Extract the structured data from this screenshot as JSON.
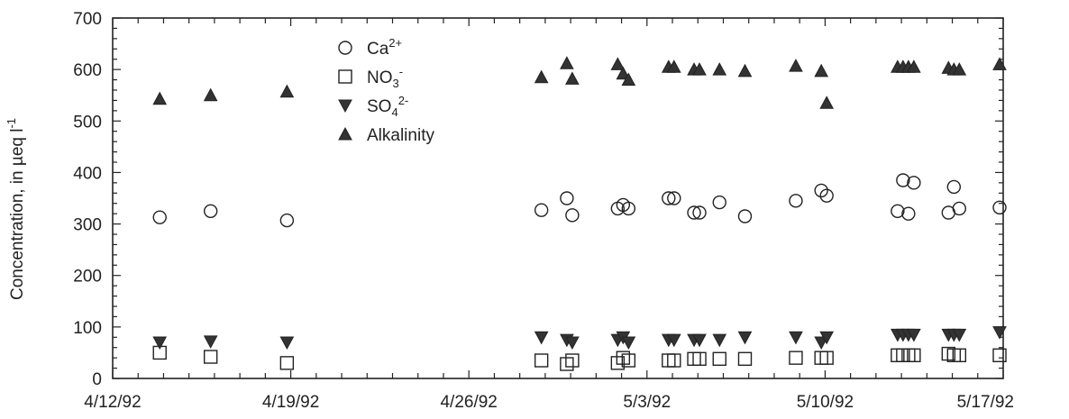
{
  "chart_data": {
    "type": "scatter",
    "title": "",
    "xlabel": "",
    "ylabel": "Concentration, in µeq l",
    "ylabel_superscript": "-1",
    "xlim": [
      "1992-04-12",
      "1992-05-17"
    ],
    "ylim": [
      0,
      700
    ],
    "yticks": [
      0,
      100,
      200,
      300,
      400,
      500,
      600,
      700
    ],
    "xticks": [
      {
        "date": "1992-04-12",
        "label": "4/12/92"
      },
      {
        "date": "1992-04-19",
        "label": "4/19/92"
      },
      {
        "date": "1992-04-26",
        "label": "4/26/92"
      },
      {
        "date": "1992-05-03",
        "label": "5/3/92"
      },
      {
        "date": "1992-05-10",
        "label": "5/10/92"
      },
      {
        "date": "1992-05-17",
        "label": "5/17/92"
      }
    ],
    "grid": false,
    "legend_position": "top-left",
    "series": [
      {
        "name": "Ca",
        "name_sup": "2+",
        "name_sub": "",
        "marker": "circle-open",
        "points": [
          [
            "1992-04-13",
            313
          ],
          [
            "1992-04-15",
            325
          ],
          [
            "1992-04-18",
            307
          ],
          [
            "1992-04-28",
            327
          ],
          [
            "1992-04-29",
            350
          ],
          [
            "1992-04-29",
            317
          ],
          [
            "1992-05-01",
            330
          ],
          [
            "1992-05-01",
            337
          ],
          [
            "1992-05-01",
            330
          ],
          [
            "1992-05-03",
            350
          ],
          [
            "1992-05-03",
            350
          ],
          [
            "1992-05-04",
            322
          ],
          [
            "1992-05-04",
            322
          ],
          [
            "1992-05-05",
            342
          ],
          [
            "1992-05-06",
            315
          ],
          [
            "1992-05-08",
            345
          ],
          [
            "1992-05-09",
            365
          ],
          [
            "1992-05-09",
            355
          ],
          [
            "1992-05-12",
            325
          ],
          [
            "1992-05-12",
            385
          ],
          [
            "1992-05-12",
            320
          ],
          [
            "1992-05-12",
            380
          ],
          [
            "1992-05-14",
            322
          ],
          [
            "1992-05-14",
            372
          ],
          [
            "1992-05-14",
            330
          ],
          [
            "1992-05-17",
            332
          ]
        ]
      },
      {
        "name": "NO",
        "name_sup": "-",
        "name_sub": "3",
        "marker": "square-open",
        "points": [
          [
            "1992-04-13",
            50
          ],
          [
            "1992-04-15",
            42
          ],
          [
            "1992-04-18",
            30
          ],
          [
            "1992-04-28",
            35
          ],
          [
            "1992-04-29",
            28
          ],
          [
            "1992-04-29",
            35
          ],
          [
            "1992-05-01",
            30
          ],
          [
            "1992-05-01",
            40
          ],
          [
            "1992-05-01",
            35
          ],
          [
            "1992-05-03",
            35
          ],
          [
            "1992-05-03",
            35
          ],
          [
            "1992-05-04",
            38
          ],
          [
            "1992-05-04",
            38
          ],
          [
            "1992-05-05",
            38
          ],
          [
            "1992-05-06",
            38
          ],
          [
            "1992-05-08",
            40
          ],
          [
            "1992-05-09",
            40
          ],
          [
            "1992-05-09",
            40
          ],
          [
            "1992-05-12",
            45
          ],
          [
            "1992-05-12",
            45
          ],
          [
            "1992-05-12",
            45
          ],
          [
            "1992-05-12",
            45
          ],
          [
            "1992-05-14",
            48
          ],
          [
            "1992-05-14",
            45
          ],
          [
            "1992-05-14",
            45
          ],
          [
            "1992-05-17",
            45
          ]
        ]
      },
      {
        "name": "SO",
        "name_sup": "2-",
        "name_sub": "4",
        "marker": "triangle-down-filled",
        "points": [
          [
            "1992-04-13",
            70
          ],
          [
            "1992-04-15",
            72
          ],
          [
            "1992-04-18",
            70
          ],
          [
            "1992-04-28",
            80
          ],
          [
            "1992-04-29",
            75
          ],
          [
            "1992-04-29",
            70
          ],
          [
            "1992-05-01",
            75
          ],
          [
            "1992-05-01",
            80
          ],
          [
            "1992-05-01",
            70
          ],
          [
            "1992-05-03",
            75
          ],
          [
            "1992-05-03",
            75
          ],
          [
            "1992-05-04",
            75
          ],
          [
            "1992-05-04",
            75
          ],
          [
            "1992-05-05",
            75
          ],
          [
            "1992-05-06",
            80
          ],
          [
            "1992-05-08",
            80
          ],
          [
            "1992-05-09",
            70
          ],
          [
            "1992-05-09",
            80
          ],
          [
            "1992-05-12",
            85
          ],
          [
            "1992-05-12",
            85
          ],
          [
            "1992-05-12",
            85
          ],
          [
            "1992-05-12",
            85
          ],
          [
            "1992-05-14",
            85
          ],
          [
            "1992-05-14",
            85
          ],
          [
            "1992-05-14",
            85
          ],
          [
            "1992-05-17",
            90
          ]
        ]
      },
      {
        "name": "Alkalinity",
        "name_sup": "",
        "name_sub": "",
        "marker": "triangle-up-filled",
        "points": [
          [
            "1992-04-13",
            543
          ],
          [
            "1992-04-15",
            550
          ],
          [
            "1992-04-18",
            557
          ],
          [
            "1992-04-28",
            585
          ],
          [
            "1992-04-29",
            612
          ],
          [
            "1992-04-29",
            582
          ],
          [
            "1992-05-01",
            610
          ],
          [
            "1992-05-01",
            592
          ],
          [
            "1992-05-01",
            580
          ],
          [
            "1992-05-03",
            605
          ],
          [
            "1992-05-03",
            605
          ],
          [
            "1992-05-04",
            600
          ],
          [
            "1992-05-04",
            600
          ],
          [
            "1992-05-05",
            600
          ],
          [
            "1992-05-06",
            597
          ],
          [
            "1992-05-08",
            607
          ],
          [
            "1992-05-09",
            597
          ],
          [
            "1992-05-09",
            535
          ],
          [
            "1992-05-12",
            605
          ],
          [
            "1992-05-12",
            605
          ],
          [
            "1992-05-12",
            605
          ],
          [
            "1992-05-12",
            605
          ],
          [
            "1992-05-14",
            603
          ],
          [
            "1992-05-14",
            600
          ],
          [
            "1992-05-14",
            600
          ],
          [
            "1992-05-17",
            610
          ]
        ]
      }
    ]
  },
  "colors": {
    "ink": "#222222",
    "background": "#ffffff"
  }
}
